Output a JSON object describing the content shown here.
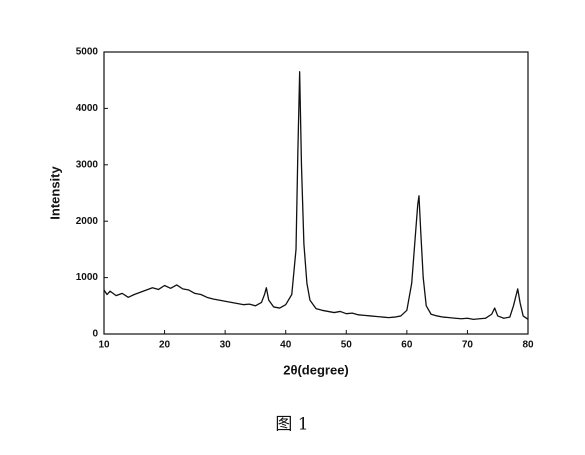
{
  "chart_data": {
    "type": "line",
    "x_label": "2θ(degree)",
    "y_label": "Intensity",
    "caption": "图 1",
    "x": [
      10,
      10.5,
      11,
      12,
      13,
      14,
      15,
      16,
      17,
      18,
      19,
      20,
      21,
      22,
      23,
      24,
      25,
      26,
      27,
      28,
      29,
      30,
      31,
      32,
      33,
      34,
      35,
      36,
      36.5,
      36.8,
      37.2,
      38,
      39,
      40,
      41,
      41.7,
      42,
      42.3,
      42.6,
      43,
      43.5,
      44,
      45,
      46,
      47,
      48,
      49,
      50,
      51,
      52,
      53,
      54,
      55,
      56,
      57,
      58,
      59,
      60,
      60.8,
      61.3,
      61.8,
      62,
      62.3,
      62.7,
      63.2,
      64,
      65,
      66,
      67,
      68,
      69,
      70,
      71,
      72,
      73,
      74,
      74.5,
      75,
      76,
      77,
      77.6,
      78.3,
      78.7,
      79.2,
      80
    ],
    "series": [
      {
        "color": "#111111",
        "values": [
          780,
          700,
          760,
          680,
          720,
          650,
          700,
          740,
          780,
          820,
          790,
          860,
          810,
          870,
          800,
          780,
          720,
          700,
          650,
          620,
          600,
          580,
          560,
          540,
          520,
          530,
          500,
          560,
          700,
          820,
          600,
          480,
          460,
          520,
          700,
          1500,
          3200,
          4650,
          3000,
          1600,
          900,
          600,
          450,
          420,
          400,
          380,
          400,
          360,
          370,
          340,
          330,
          320,
          310,
          300,
          290,
          300,
          320,
          420,
          900,
          1600,
          2300,
          2450,
          1800,
          1000,
          500,
          350,
          320,
          300,
          290,
          280,
          270,
          280,
          260,
          270,
          280,
          350,
          460,
          320,
          280,
          300,
          500,
          800,
          550,
          320,
          260
        ]
      }
    ],
    "xlim": [
      10,
      80
    ],
    "xticks": [
      10,
      20,
      30,
      40,
      50,
      60,
      70,
      80
    ],
    "ylim": [
      0,
      5000
    ],
    "yticks": [
      0,
      1000,
      2000,
      3000,
      4000,
      5000
    ]
  }
}
